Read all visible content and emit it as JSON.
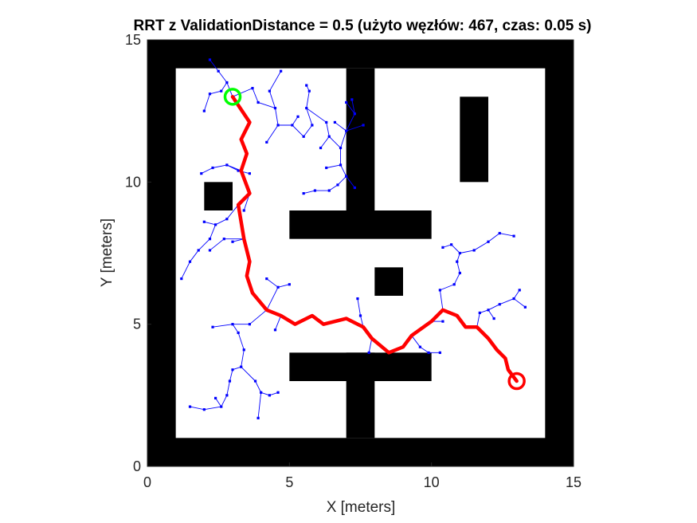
{
  "chart_data": {
    "type": "line",
    "title": "RRT z ValidationDistance = 0.5 (użyto węzłów: 467, czas: 0.05 s)",
    "xlabel": "X [meters]",
    "ylabel": "Y [meters]",
    "xlim": [
      0,
      15
    ],
    "ylim": [
      0,
      15
    ],
    "xticks": [
      "0",
      "5",
      "10",
      "15"
    ],
    "yticks": [
      "0",
      "5",
      "10",
      "15"
    ],
    "grid": false,
    "colors": {
      "obstacle": "#000000",
      "tree": "#0000ff",
      "path": "#ff0000",
      "start": "#00ff00",
      "goal": "#ff0000"
    },
    "obstacles": [
      {
        "x0": 0,
        "y0": 0,
        "x1": 15,
        "y1": 1
      },
      {
        "x0": 0,
        "y0": 14,
        "x1": 15,
        "y1": 15
      },
      {
        "x0": 0,
        "y0": 0,
        "x1": 1,
        "y1": 15
      },
      {
        "x0": 14,
        "y0": 0,
        "x1": 15,
        "y1": 15
      },
      {
        "x0": 7,
        "y0": 1,
        "x1": 8,
        "y1": 4
      },
      {
        "x0": 5,
        "y0": 3,
        "x1": 10,
        "y1": 4
      },
      {
        "x0": 7,
        "y0": 9,
        "x1": 8,
        "y1": 14
      },
      {
        "x0": 5,
        "y0": 8,
        "x1": 10,
        "y1": 9
      },
      {
        "x0": 2,
        "y0": 9,
        "x1": 3,
        "y1": 10
      },
      {
        "x0": 11,
        "y0": 10,
        "x1": 12,
        "y1": 13
      },
      {
        "x0": 8,
        "y0": 6,
        "x1": 9,
        "y1": 7
      }
    ],
    "start": {
      "x": 3,
      "y": 13
    },
    "goal": {
      "x": 13,
      "y": 3
    },
    "path": [
      [
        3.0,
        13.0
      ],
      [
        3.6,
        12.1
      ],
      [
        3.3,
        11.5
      ],
      [
        3.5,
        11.0
      ],
      [
        3.3,
        10.4
      ],
      [
        3.6,
        9.6
      ],
      [
        3.2,
        9.2
      ],
      [
        3.4,
        8.0
      ],
      [
        3.6,
        7.2
      ],
      [
        3.5,
        6.7
      ],
      [
        3.7,
        6.1
      ],
      [
        4.2,
        5.5
      ],
      [
        4.7,
        5.3
      ],
      [
        5.2,
        5.0
      ],
      [
        5.8,
        5.3
      ],
      [
        6.2,
        5.0
      ],
      [
        7.0,
        5.2
      ],
      [
        7.6,
        4.9
      ],
      [
        7.9,
        4.5
      ],
      [
        8.5,
        4.0
      ],
      [
        9.0,
        4.2
      ],
      [
        9.3,
        4.6
      ],
      [
        10.0,
        5.1
      ],
      [
        10.4,
        5.5
      ],
      [
        10.9,
        5.3
      ],
      [
        11.2,
        4.9
      ],
      [
        11.6,
        4.9
      ],
      [
        12.0,
        4.5
      ],
      [
        12.3,
        4.1
      ],
      [
        12.6,
        3.8
      ],
      [
        12.7,
        3.4
      ],
      [
        13.0,
        3.0
      ]
    ],
    "tree_edges": [
      [
        [
          3.0,
          13.0
        ],
        [
          2.8,
          13.5
        ]
      ],
      [
        [
          2.8,
          13.5
        ],
        [
          2.6,
          13.2
        ]
      ],
      [
        [
          2.6,
          13.2
        ],
        [
          2.2,
          13.1
        ]
      ],
      [
        [
          2.2,
          13.1
        ],
        [
          2.0,
          12.5
        ]
      ],
      [
        [
          2.8,
          13.5
        ],
        [
          2.5,
          13.9
        ]
      ],
      [
        [
          2.5,
          13.9
        ],
        [
          2.2,
          14.3
        ]
      ],
      [
        [
          3.0,
          13.0
        ],
        [
          3.7,
          13.3
        ]
      ],
      [
        [
          3.7,
          13.3
        ],
        [
          3.9,
          12.8
        ]
      ],
      [
        [
          3.9,
          12.8
        ],
        [
          4.5,
          12.6
        ]
      ],
      [
        [
          4.5,
          12.6
        ],
        [
          4.6,
          12.0
        ]
      ],
      [
        [
          4.6,
          12.0
        ],
        [
          4.2,
          11.4
        ]
      ],
      [
        [
          4.6,
          12.0
        ],
        [
          5.1,
          12.0
        ]
      ],
      [
        [
          5.1,
          12.0
        ],
        [
          5.3,
          12.3
        ]
      ],
      [
        [
          5.1,
          12.0
        ],
        [
          5.5,
          11.6
        ]
      ],
      [
        [
          4.5,
          12.6
        ],
        [
          4.3,
          13.2
        ]
      ],
      [
        [
          4.3,
          13.2
        ],
        [
          4.7,
          13.9
        ]
      ],
      [
        [
          5.5,
          11.6
        ],
        [
          5.8,
          12.0
        ]
      ],
      [
        [
          5.8,
          12.0
        ],
        [
          5.6,
          12.6
        ]
      ],
      [
        [
          5.6,
          12.6
        ],
        [
          6.3,
          12.1
        ]
      ],
      [
        [
          6.3,
          12.1
        ],
        [
          6.4,
          11.6
        ]
      ],
      [
        [
          6.4,
          11.6
        ],
        [
          6.8,
          11.2
        ]
      ],
      [
        [
          6.8,
          11.2
        ],
        [
          7.0,
          11.8
        ]
      ],
      [
        [
          7.0,
          11.8
        ],
        [
          6.6,
          12.1
        ]
      ],
      [
        [
          7.0,
          11.8
        ],
        [
          7.3,
          12.4
        ]
      ],
      [
        [
          7.3,
          12.4
        ],
        [
          7.2,
          12.9
        ]
      ],
      [
        [
          7.3,
          12.4
        ],
        [
          7.0,
          12.8
        ]
      ],
      [
        [
          6.8,
          11.2
        ],
        [
          6.8,
          10.6
        ]
      ],
      [
        [
          6.8,
          10.6
        ],
        [
          6.3,
          10.5
        ]
      ],
      [
        [
          6.8,
          10.6
        ],
        [
          7.0,
          10.2
        ]
      ],
      [
        [
          7.0,
          10.2
        ],
        [
          6.7,
          9.9
        ]
      ],
      [
        [
          6.7,
          9.9
        ],
        [
          6.4,
          9.7
        ]
      ],
      [
        [
          6.4,
          9.7
        ],
        [
          5.9,
          9.7
        ]
      ],
      [
        [
          5.9,
          9.7
        ],
        [
          5.5,
          9.6
        ]
      ],
      [
        [
          7.0,
          10.2
        ],
        [
          7.3,
          9.8
        ]
      ],
      [
        [
          7.0,
          11.8
        ],
        [
          7.6,
          12.0
        ]
      ],
      [
        [
          6.4,
          11.6
        ],
        [
          6.1,
          11.2
        ]
      ],
      [
        [
          5.6,
          12.6
        ],
        [
          5.7,
          13.2
        ]
      ],
      [
        [
          5.7,
          13.2
        ],
        [
          5.6,
          13.4
        ]
      ],
      [
        [
          3.3,
          10.4
        ],
        [
          2.8,
          10.6
        ]
      ],
      [
        [
          2.8,
          10.6
        ],
        [
          2.3,
          10.5
        ]
      ],
      [
        [
          2.3,
          10.5
        ],
        [
          1.9,
          10.3
        ]
      ],
      [
        [
          2.8,
          10.6
        ],
        [
          3.2,
          10.4
        ]
      ],
      [
        [
          3.2,
          10.4
        ],
        [
          3.6,
          10.3
        ]
      ],
      [
        [
          3.2,
          9.2
        ],
        [
          2.8,
          8.7
        ]
      ],
      [
        [
          2.8,
          8.7
        ],
        [
          2.4,
          8.5
        ]
      ],
      [
        [
          2.4,
          8.5
        ],
        [
          2.2,
          8.0
        ]
      ],
      [
        [
          2.2,
          8.0
        ],
        [
          1.8,
          7.6
        ]
      ],
      [
        [
          1.8,
          7.6
        ],
        [
          1.5,
          7.2
        ]
      ],
      [
        [
          1.5,
          7.2
        ],
        [
          1.2,
          6.6
        ]
      ],
      [
        [
          2.4,
          8.5
        ],
        [
          2.0,
          8.6
        ]
      ],
      [
        [
          3.4,
          8.0
        ],
        [
          2.7,
          8.0
        ]
      ],
      [
        [
          2.7,
          8.0
        ],
        [
          2.2,
          7.6
        ]
      ],
      [
        [
          3.4,
          8.0
        ],
        [
          3.0,
          7.9
        ]
      ],
      [
        [
          3.6,
          9.6
        ],
        [
          3.4,
          9.0
        ]
      ],
      [
        [
          4.2,
          5.5
        ],
        [
          4.6,
          6.3
        ]
      ],
      [
        [
          4.6,
          6.3
        ],
        [
          5.0,
          6.4
        ]
      ],
      [
        [
          4.6,
          6.3
        ],
        [
          4.2,
          6.6
        ]
      ],
      [
        [
          4.7,
          5.3
        ],
        [
          4.5,
          4.8
        ]
      ],
      [
        [
          4.2,
          5.5
        ],
        [
          3.6,
          5.0
        ]
      ],
      [
        [
          3.6,
          5.0
        ],
        [
          3.0,
          5.0
        ]
      ],
      [
        [
          3.0,
          5.0
        ],
        [
          2.3,
          4.9
        ]
      ],
      [
        [
          3.0,
          5.0
        ],
        [
          3.2,
          4.7
        ]
      ],
      [
        [
          3.2,
          4.7
        ],
        [
          3.4,
          4.1
        ]
      ],
      [
        [
          3.4,
          4.1
        ],
        [
          3.3,
          3.5
        ]
      ],
      [
        [
          3.3,
          3.5
        ],
        [
          3.0,
          3.4
        ]
      ],
      [
        [
          3.3,
          3.5
        ],
        [
          3.8,
          3.0
        ]
      ],
      [
        [
          3.8,
          3.0
        ],
        [
          4.0,
          2.6
        ]
      ],
      [
        [
          4.0,
          2.6
        ],
        [
          4.3,
          2.5
        ]
      ],
      [
        [
          4.3,
          2.5
        ],
        [
          4.6,
          2.6
        ]
      ],
      [
        [
          4.0,
          2.6
        ],
        [
          3.9,
          1.7
        ]
      ],
      [
        [
          3.0,
          3.4
        ],
        [
          2.9,
          3.0
        ]
      ],
      [
        [
          2.9,
          3.0
        ],
        [
          2.8,
          2.5
        ]
      ],
      [
        [
          2.8,
          2.5
        ],
        [
          2.6,
          2.1
        ]
      ],
      [
        [
          2.6,
          2.1
        ],
        [
          2.4,
          2.4
        ]
      ],
      [
        [
          2.6,
          2.1
        ],
        [
          2.0,
          2.0
        ]
      ],
      [
        [
          2.0,
          2.0
        ],
        [
          1.5,
          2.1
        ]
      ],
      [
        [
          7.6,
          4.9
        ],
        [
          7.5,
          5.3
        ]
      ],
      [
        [
          7.5,
          5.3
        ],
        [
          7.4,
          5.9
        ]
      ],
      [
        [
          7.9,
          4.5
        ],
        [
          7.8,
          4.0
        ]
      ],
      [
        [
          9.3,
          4.6
        ],
        [
          9.6,
          4.2
        ]
      ],
      [
        [
          9.6,
          4.2
        ],
        [
          9.9,
          4.0
        ]
      ],
      [
        [
          9.9,
          4.0
        ],
        [
          10.3,
          4.0
        ]
      ],
      [
        [
          10.0,
          5.1
        ],
        [
          10.4,
          5.1
        ]
      ],
      [
        [
          10.4,
          5.5
        ],
        [
          10.3,
          6.2
        ]
      ],
      [
        [
          10.3,
          6.2
        ],
        [
          10.8,
          6.4
        ]
      ],
      [
        [
          10.8,
          6.4
        ],
        [
          11.0,
          6.8
        ]
      ],
      [
        [
          11.0,
          6.8
        ],
        [
          10.9,
          7.2
        ]
      ],
      [
        [
          10.9,
          7.2
        ],
        [
          11.0,
          7.5
        ]
      ],
      [
        [
          11.0,
          7.5
        ],
        [
          10.7,
          7.8
        ]
      ],
      [
        [
          10.7,
          7.8
        ],
        [
          10.4,
          7.7
        ]
      ],
      [
        [
          11.0,
          7.5
        ],
        [
          11.5,
          7.6
        ]
      ],
      [
        [
          11.5,
          7.6
        ],
        [
          12.0,
          7.9
        ]
      ],
      [
        [
          12.0,
          7.9
        ],
        [
          12.4,
          8.2
        ]
      ],
      [
        [
          12.4,
          8.2
        ],
        [
          12.9,
          8.1
        ]
      ],
      [
        [
          11.6,
          4.9
        ],
        [
          11.7,
          5.4
        ]
      ],
      [
        [
          11.7,
          5.4
        ],
        [
          12.0,
          5.5
        ]
      ],
      [
        [
          12.0,
          5.5
        ],
        [
          12.4,
          5.7
        ]
      ],
      [
        [
          12.4,
          5.7
        ],
        [
          12.9,
          5.9
        ]
      ],
      [
        [
          12.9,
          5.9
        ],
        [
          13.1,
          6.2
        ]
      ],
      [
        [
          12.9,
          5.9
        ],
        [
          13.3,
          5.6
        ]
      ],
      [
        [
          12.0,
          5.5
        ],
        [
          12.2,
          5.2
        ]
      ]
    ]
  }
}
